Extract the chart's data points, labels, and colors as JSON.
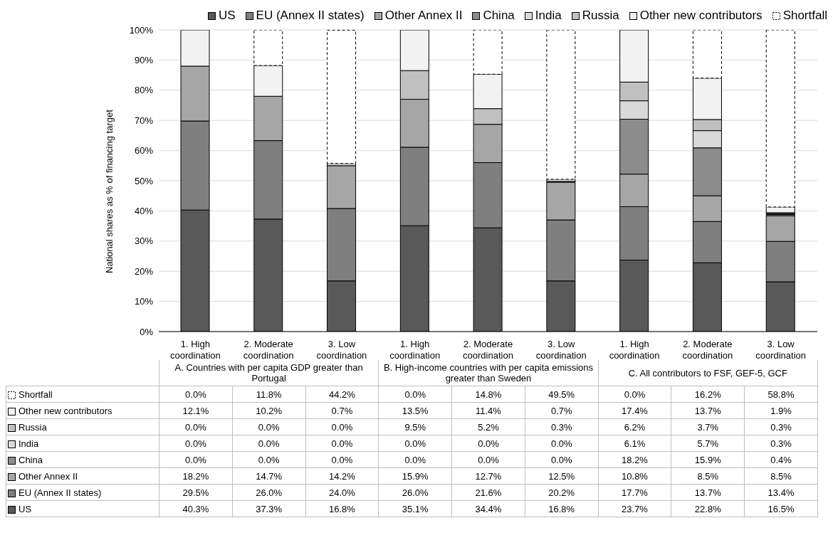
{
  "chart_data": {
    "type": "bar",
    "stacked": true,
    "ylabel": "National shares as % of financing target",
    "categories": [
      "1. High coordination",
      "2. Moderate coordination",
      "3. Low coordination",
      "1. High coordination",
      "2. Moderate coordination",
      "3. Low coordination",
      "1. High coordination",
      "2. Moderate coordination",
      "3. Low coordination"
    ],
    "annotations": [
      "A. Countries with per capita GDP greater than Portugal",
      "B. High-income countries with per capita emissions greater than Sweden",
      "C. All contributors to FSF, GEF-5, GCF"
    ],
    "ylim": [
      0,
      100
    ],
    "yticks": [
      {
        "value": 0,
        "label": "0%"
      },
      {
        "value": 10,
        "label": "10%"
      },
      {
        "value": 20,
        "label": "20%"
      },
      {
        "value": 30,
        "label": "30%"
      },
      {
        "value": 40,
        "label": "40%"
      },
      {
        "value": 50,
        "label": "50%"
      },
      {
        "value": 60,
        "label": "60%"
      },
      {
        "value": 70,
        "label": "70%"
      },
      {
        "value": 80,
        "label": "80%"
      },
      {
        "value": 90,
        "label": "90%"
      },
      {
        "value": 100,
        "label": "100%"
      }
    ],
    "grid": "y",
    "legend": "top",
    "series": [
      {
        "name": "US",
        "color": "#595959",
        "values": [
          40.3,
          37.3,
          16.8,
          35.1,
          34.4,
          16.8,
          23.7,
          22.8,
          16.5
        ],
        "value_labels": [
          "40.3%",
          "37.3%",
          "16.8%",
          "35.1%",
          "34.4%",
          "16.8%",
          "23.7%",
          "22.8%",
          "16.5%"
        ]
      },
      {
        "name": "EU (Annex II states)",
        "color": "#7f7f7f",
        "values": [
          29.5,
          26.0,
          24.0,
          26.0,
          21.6,
          20.2,
          17.7,
          13.7,
          13.4
        ],
        "value_labels": [
          "29.5%",
          "26.0%",
          "24.0%",
          "26.0%",
          "21.6%",
          "20.2%",
          "17.7%",
          "13.7%",
          "13.4%"
        ]
      },
      {
        "name": "Other Annex II",
        "color": "#a6a6a6",
        "values": [
          18.2,
          14.7,
          14.2,
          15.9,
          12.7,
          12.5,
          10.8,
          8.5,
          8.5
        ],
        "value_labels": [
          "18.2%",
          "14.7%",
          "14.2%",
          "15.9%",
          "12.7%",
          "12.5%",
          "10.8%",
          "8.5%",
          "8.5%"
        ]
      },
      {
        "name": "China",
        "color": "#8c8c8c",
        "values": [
          0,
          0,
          0,
          0,
          0,
          0,
          18.2,
          15.9,
          0.4
        ],
        "value_labels": [
          "0.0%",
          "0.0%",
          "0.0%",
          "0.0%",
          "0.0%",
          "0.0%",
          "18.2%",
          "15.9%",
          "0.4%"
        ]
      },
      {
        "name": "India",
        "color": "#d9d9d9",
        "values": [
          0,
          0,
          0,
          0,
          0,
          0,
          6.1,
          5.7,
          0.3
        ],
        "value_labels": [
          "0.0%",
          "0.0%",
          "0.0%",
          "0.0%",
          "0.0%",
          "0.0%",
          "6.1%",
          "5.7%",
          "0.3%"
        ]
      },
      {
        "name": "Russia",
        "color": "#c0c0c0",
        "values": [
          0,
          0,
          0,
          9.5,
          5.2,
          0.3,
          6.2,
          3.7,
          0.3
        ],
        "value_labels": [
          "0.0%",
          "0.0%",
          "0.0%",
          "9.5%",
          "5.2%",
          "0.3%",
          "6.2%",
          "3.7%",
          "0.3%"
        ]
      },
      {
        "name": "Other new contributors",
        "color": "#f2f2f2",
        "values": [
          12.1,
          10.2,
          0.7,
          13.5,
          11.4,
          0.7,
          17.4,
          13.7,
          1.9
        ],
        "value_labels": [
          "12.1%",
          "10.2%",
          "0.7%",
          "13.5%",
          "11.4%",
          "0.7%",
          "17.4%",
          "13.7%",
          "1.9%"
        ]
      },
      {
        "name": "Shortfall",
        "color": "#ffffff",
        "line_style": "dashed",
        "values": [
          0,
          11.8,
          44.2,
          0,
          14.8,
          49.5,
          0,
          16.2,
          58.8
        ],
        "value_labels": [
          "0.0%",
          "11.8%",
          "44.2%",
          "0.0%",
          "14.8%",
          "49.5%",
          "0.0%",
          "16.2%",
          "58.8%"
        ]
      }
    ]
  }
}
